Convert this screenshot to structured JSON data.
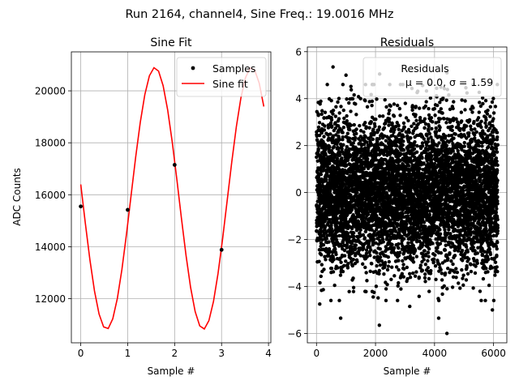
{
  "suptitle": "Run 2164, channel4, Sine Freq.: 19.0016 MHz",
  "chart_data": [
    {
      "type": "line",
      "title": "Sine Fit",
      "xlabel": "Sample #",
      "ylabel": "ADC Counts",
      "xlim": [
        -0.2,
        4.05
      ],
      "ylim": [
        10300,
        21500
      ],
      "xticks": [
        0,
        1,
        2,
        3,
        4
      ],
      "yticks": [
        12000,
        14000,
        16000,
        18000,
        20000
      ],
      "grid": true,
      "legend": "top-right",
      "samples": {
        "name": "Samples",
        "x": [
          0,
          1,
          2,
          3
        ],
        "y": [
          15550,
          15420,
          17150,
          13880
        ]
      },
      "fit": {
        "name": "Sine fit",
        "color": "#ff0000",
        "amplitude": 5040,
        "offset": 15860,
        "period": 2.06,
        "phase_sample": 1.58,
        "x_start": 0,
        "x_end": 3.9,
        "points": 40
      }
    },
    {
      "type": "scatter",
      "title": "Residuals",
      "xlabel": "Sample #",
      "xlim": [
        -310,
        6450
      ],
      "ylim": [
        -6.4,
        6.2
      ],
      "xticks": [
        0,
        2000,
        4000,
        6000
      ],
      "yticks": [
        -6,
        -4,
        -2,
        0,
        2,
        4,
        6
      ],
      "grid": true,
      "legend": "top-right",
      "series": {
        "name": "Residuals",
        "count": 6144,
        "mean": 0.0,
        "sigma": 1.59,
        "extremes": [
          [
            560,
            5.35
          ],
          [
            1000,
            5.0
          ],
          [
            2140,
            5.05
          ],
          [
            4420,
            5.1
          ],
          [
            2130,
            -5.65
          ],
          [
            4420,
            -6.0
          ],
          [
            4140,
            -5.35
          ],
          [
            5960,
            -5.0
          ],
          [
            110,
            -4.75
          ],
          [
            820,
            -5.35
          ],
          [
            3160,
            -4.85
          ],
          [
            2530,
            -3.7
          ]
        ]
      },
      "legend_title": "Residuals",
      "legend_label": "μ = 0.0, σ = 1.59"
    }
  ]
}
